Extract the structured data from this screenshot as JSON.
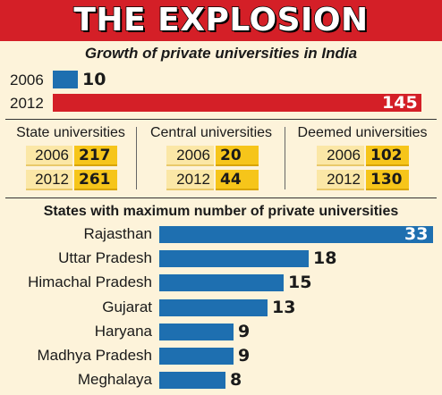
{
  "title": "THE EXPLOSION",
  "subtitle": "Growth of private universities in India",
  "chart_data": [
    {
      "type": "bar",
      "orientation": "horizontal",
      "categories": [
        "2006",
        "2012"
      ],
      "values": [
        10,
        145
      ],
      "colors": [
        "#1e6fb0",
        "#d41f27"
      ],
      "xlim": [
        0,
        145
      ]
    },
    {
      "type": "table",
      "groups": [
        {
          "label": "State universities",
          "rows": [
            {
              "year": "2006",
              "value": "217"
            },
            {
              "year": "2012",
              "value": "261"
            }
          ]
        },
        {
          "label": "Central universities",
          "rows": [
            {
              "year": "2006",
              "value": "20"
            },
            {
              "year": "2012",
              "value": "44"
            }
          ]
        },
        {
          "label": "Deemed universities",
          "rows": [
            {
              "year": "2006",
              "value": "102"
            },
            {
              "year": "2012",
              "value": "130"
            }
          ]
        }
      ]
    },
    {
      "type": "bar",
      "orientation": "horizontal",
      "title": "States with maximum number of private universities",
      "categories": [
        "Rajasthan",
        "Uttar Pradesh",
        "Himachal Pradesh",
        "Gujarat",
        "Haryana",
        "Madhya Pradesh",
        "Meghalaya"
      ],
      "values": [
        33,
        18,
        15,
        13,
        9,
        9,
        8
      ],
      "color": "#1e6fb0",
      "xlim": [
        0,
        33
      ]
    }
  ],
  "colors": {
    "title_bg": "#d41f27",
    "background": "#fdf3da",
    "bar_blue": "#1e6fb0",
    "bar_red": "#d41f27",
    "cell_year": "#fbe7a6",
    "cell_value": "#f6c51a"
  }
}
